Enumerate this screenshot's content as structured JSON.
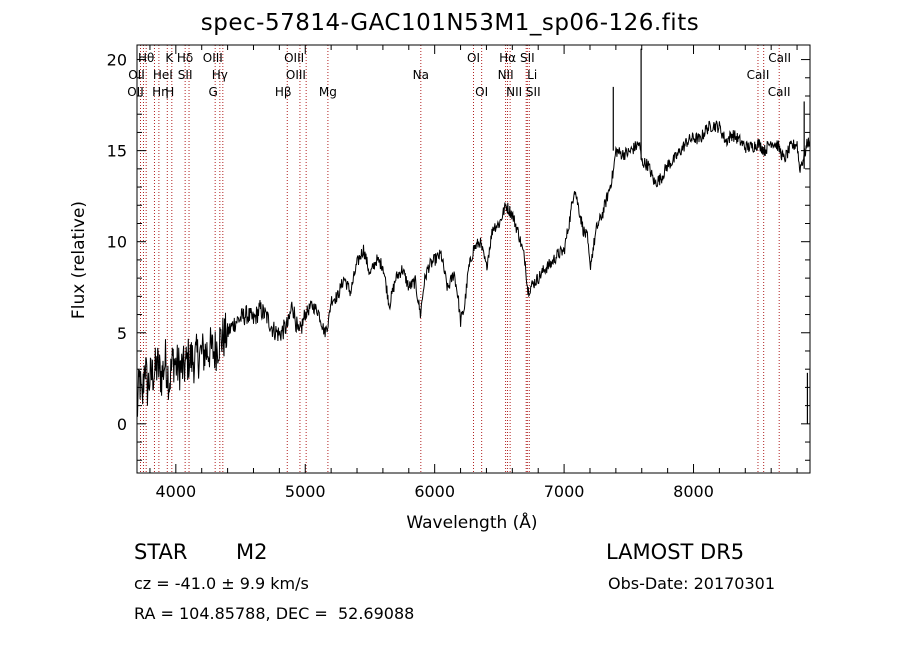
{
  "title": "spec-57814-GAC101N53M1_sp06-126.fits",
  "footer": {
    "object_type": "STAR",
    "subclass": "M2",
    "survey": "LAMOST DR5",
    "cz": "cz = -41.0 ± 9.9 km/s",
    "obs_date": "Obs-Date: 20170301",
    "radec": "RA = 104.85788, DEC =  52.69088"
  },
  "chart_data": {
    "type": "line",
    "xlabel": "Wavelength (Å)",
    "ylabel": "Flux (relative)",
    "xlim": [
      3700,
      8900
    ],
    "ylim": [
      -2.7,
      20.8
    ],
    "xticks": [
      4000,
      5000,
      6000,
      7000,
      8000
    ],
    "yticks": [
      0,
      5,
      10,
      15,
      20
    ],
    "grid": false,
    "line_color": "#000000",
    "marker_color": "#b22222",
    "spectrum": {
      "x": [
        3700,
        3720,
        3740,
        3760,
        3780,
        3800,
        3830,
        3860,
        3890,
        3920,
        3950,
        3980,
        4000,
        4030,
        4060,
        4100,
        4140,
        4180,
        4220,
        4260,
        4300,
        4340,
        4380,
        4420,
        4460,
        4500,
        4550,
        4600,
        4650,
        4700,
        4750,
        4800,
        4850,
        4870,
        4900,
        4950,
        5000,
        5050,
        5100,
        5150,
        5180,
        5200,
        5250,
        5300,
        5350,
        5400,
        5450,
        5500,
        5550,
        5600,
        5650,
        5700,
        5750,
        5800,
        5850,
        5890,
        5920,
        5950,
        6000,
        6050,
        6100,
        6150,
        6180,
        6200,
        6230,
        6260,
        6300,
        6350,
        6400,
        6450,
        6500,
        6550,
        6600,
        6650,
        6700,
        6720,
        6750,
        6800,
        6850,
        6900,
        6950,
        7000,
        7050,
        7080,
        7100,
        7150,
        7180,
        7200,
        7250,
        7300,
        7350,
        7380,
        7400,
        7450,
        7500,
        7550,
        7580,
        7600,
        7650,
        7700,
        7750,
        7800,
        7850,
        7900,
        7950,
        8000,
        8050,
        8100,
        8150,
        8200,
        8250,
        8300,
        8350,
        8400,
        8450,
        8500,
        8550,
        8600,
        8650,
        8700,
        8750,
        8800,
        8820,
        8850,
        8880,
        8900
      ],
      "y": [
        0.5,
        2.5,
        1.0,
        3.5,
        2.0,
        2.5,
        2.8,
        3.2,
        2.6,
        3.5,
        2.3,
        3.6,
        3.2,
        3.1,
        3.0,
        3.6,
        3.5,
        3.8,
        3.9,
        4.1,
        4.0,
        4.6,
        4.8,
        5.2,
        5.6,
        5.8,
        6.0,
        5.7,
        6.3,
        5.9,
        5.2,
        4.9,
        5.3,
        5.5,
        6.6,
        4.8,
        6.0,
        6.5,
        6.2,
        5.0,
        5.6,
        6.8,
        7.0,
        8.0,
        7.2,
        8.8,
        9.6,
        8.2,
        9.0,
        8.7,
        6.5,
        8.0,
        8.5,
        7.5,
        7.8,
        6.0,
        7.8,
        8.6,
        9.0,
        9.3,
        7.4,
        8.3,
        7.0,
        5.6,
        6.4,
        8.4,
        9.6,
        10.0,
        8.6,
        10.8,
        11.0,
        12.0,
        11.5,
        10.4,
        8.9,
        7.3,
        7.6,
        8.0,
        8.5,
        8.8,
        9.3,
        9.5,
        11.5,
        13.0,
        12.3,
        10.6,
        10.2,
        8.6,
        10.7,
        11.6,
        12.9,
        13.8,
        15.0,
        14.8,
        14.9,
        15.2,
        15.4,
        14.4,
        14.2,
        13.2,
        13.5,
        14.2,
        14.5,
        15.0,
        15.5,
        15.7,
        15.6,
        16.2,
        16.4,
        16.3,
        15.5,
        15.9,
        15.6,
        15.2,
        15.2,
        15.4,
        15.0,
        15.5,
        15.3,
        14.5,
        15.2,
        15.4,
        14.0,
        14.6,
        15.4,
        15.6
      ]
    },
    "emission_spikes": [
      {
        "x": 7380,
        "y_from": 15.0,
        "y_to": 18.5
      },
      {
        "x": 7595,
        "y_from": 14.5,
        "y_to": 20.6
      },
      {
        "x": 8855,
        "y_from": 14.0,
        "y_to": 17.7
      },
      {
        "x": 8880,
        "y_from": 2.8,
        "y_to": 0.0
      }
    ],
    "line_markers": [
      {
        "x": 3727,
        "label": "OII",
        "row": 1,
        "dx": -4
      },
      {
        "x": 3750,
        "label": "OII",
        "row": 2,
        "dx": -8
      },
      {
        "x": 3771,
        "label": "Hθ",
        "row": 0,
        "dx": 0
      },
      {
        "x": 3835,
        "label": "Hη",
        "row": 2,
        "dx": 6
      },
      {
        "x": 3869,
        "label": "HeI",
        "row": 1,
        "dx": 4
      },
      {
        "x": 3934,
        "label": "K",
        "row": 0,
        "dx": 2
      },
      {
        "x": 3969,
        "label": "H",
        "row": 2,
        "dx": -2
      },
      {
        "x": 4072,
        "label": "SII",
        "row": 1,
        "dx": 0
      },
      {
        "x": 4102,
        "label": "Hδ",
        "row": 0,
        "dx": -4
      },
      {
        "x": 4304,
        "label": "G",
        "row": 2,
        "dx": -2
      },
      {
        "x": 4340,
        "label": "Hγ",
        "row": 1,
        "dx": 0
      },
      {
        "x": 4363,
        "label": "OIII",
        "row": 0,
        "dx": -10
      },
      {
        "x": 4861,
        "label": "Hβ",
        "row": 2,
        "dx": -4
      },
      {
        "x": 4959,
        "label": "OIII",
        "row": 1,
        "dx": -4
      },
      {
        "x": 5007,
        "label": "OIII",
        "row": 0,
        "dx": -12
      },
      {
        "x": 5175,
        "label": "Mg",
        "row": 2,
        "dx": 0
      },
      {
        "x": 5893,
        "label": "Na",
        "row": 1,
        "dx": 0
      },
      {
        "x": 6300,
        "label": "OI",
        "row": 0,
        "dx": 0
      },
      {
        "x": 6363,
        "label": "OI",
        "row": 2,
        "dx": 0
      },
      {
        "x": 6548,
        "label": "NII",
        "row": 1,
        "dx": 0
      },
      {
        "x": 6563,
        "label": "Hα",
        "row": 0,
        "dx": 0
      },
      {
        "x": 6583,
        "label": "NII",
        "row": 2,
        "dx": 4
      },
      {
        "x": 6707,
        "label": "Li",
        "row": 1,
        "dx": 6
      },
      {
        "x": 6716,
        "label": "SII",
        "row": 0,
        "dx": 0
      },
      {
        "x": 6731,
        "label": "SII",
        "row": 2,
        "dx": 4
      },
      {
        "x": 8498,
        "label": "CaII",
        "row": 1,
        "dx": 0
      },
      {
        "x": 8542,
        "label": "CaII",
        "row": 0,
        "dx": 16
      },
      {
        "x": 8662,
        "label": "CaII",
        "row": 2,
        "dx": 0
      }
    ]
  }
}
